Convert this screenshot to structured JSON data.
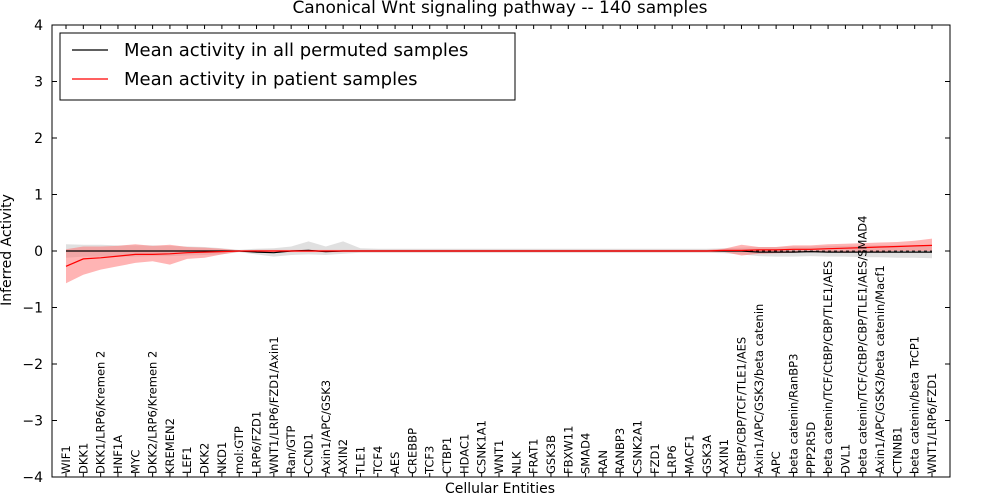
{
  "chart_data": {
    "type": "line",
    "title": "Canonical Wnt signaling pathway -- 140 samples",
    "xlabel": "Cellular Entities",
    "ylabel": "Inferred Activity",
    "ylim": [
      -4,
      4
    ],
    "yticks": [
      "−4",
      "−3",
      "−2",
      "−1",
      "0",
      "1",
      "2",
      "3",
      "4"
    ],
    "ytick_values": [
      -4,
      -3,
      -2,
      -1,
      0,
      1,
      2,
      3,
      4
    ],
    "legend_position": "upper-left",
    "categories": [
      "WIF1",
      "DKK1",
      "DKK1/LRP6/Kremen 2",
      "HNF1A",
      "MYC",
      "DKK2/LRP6/Kremen 2",
      "KREMEN2",
      "LEF1",
      "DKK2",
      "NKD1",
      "mol:GTP",
      "LRP6/FZD1",
      "WNT1/LRP6/FZD1/Axin1",
      "Ran/GTP",
      "CCND1",
      "Axin1/APC/GSK3",
      "AXIN2",
      "TLE1",
      "TCF4",
      "AES",
      "CREBBP",
      "TCF3",
      "CTBP1",
      "HDAC1",
      "CSNK1A1",
      "WNT1",
      "NLK",
      "FRAT1",
      "GSK3B",
      "FBXW11",
      "SMAD4",
      "RAN",
      "RANBP3",
      "CSNK2A1",
      "FZD1",
      "LRP6",
      "MACF1",
      "GSK3A",
      "AXIN1",
      "CtBP/CBP/TCF/TLE1/AES",
      "Axin1/APC/GSK3/beta catenin",
      "APC",
      "beta catenin/RanBP3",
      "PPP2R5D",
      "beta catenin/TCF/CtBP/CBP/TLE1/AES",
      "DVL1",
      "beta catenin/TCF/CtBP/CBP/TLE1/AES/SMAD4",
      "Axin1/APC/GSK3/beta catenin/Macf1",
      "CTNNB1",
      "beta catenin/beta TrCP1",
      "WNT1/LRP6/FZD1"
    ],
    "series": [
      {
        "name": "Mean activity in all permuted samples",
        "color": "#000000",
        "band_color": "#bbbbbb",
        "values": [
          0.0,
          0.0,
          0.0,
          0.0,
          0.0,
          0.0,
          0.0,
          0.0,
          0.0,
          0.0,
          0.0,
          -0.02,
          -0.03,
          0.0,
          0.01,
          -0.01,
          0.0,
          0.0,
          0.0,
          0.0,
          0.0,
          0.0,
          0.0,
          0.0,
          0.0,
          0.0,
          0.0,
          0.0,
          0.0,
          0.0,
          0.0,
          0.0,
          0.0,
          0.0,
          0.0,
          0.0,
          0.0,
          0.0,
          0.0,
          0.0,
          -0.02,
          -0.02,
          -0.02,
          -0.01,
          -0.02,
          -0.02,
          -0.02,
          -0.02,
          -0.02,
          -0.02,
          -0.02
        ],
        "lower": [
          -0.12,
          -0.1,
          -0.1,
          -0.1,
          -0.1,
          -0.09,
          -0.09,
          -0.08,
          -0.07,
          -0.06,
          -0.02,
          -0.06,
          -0.1,
          -0.07,
          -0.06,
          -0.07,
          -0.05,
          -0.03,
          -0.03,
          -0.03,
          -0.03,
          -0.03,
          -0.03,
          -0.03,
          -0.03,
          -0.03,
          -0.03,
          -0.03,
          -0.03,
          -0.03,
          -0.03,
          -0.03,
          -0.03,
          -0.03,
          -0.03,
          -0.03,
          -0.03,
          -0.03,
          -0.04,
          -0.06,
          -0.09,
          -0.1,
          -0.1,
          -0.09,
          -0.1,
          -0.1,
          -0.11,
          -0.11,
          -0.12,
          -0.12,
          -0.13
        ],
        "upper": [
          0.12,
          0.11,
          0.11,
          0.1,
          0.1,
          0.1,
          0.09,
          0.08,
          0.07,
          0.05,
          0.02,
          0.04,
          0.05,
          0.08,
          0.17,
          0.08,
          0.17,
          0.05,
          0.04,
          0.04,
          0.04,
          0.04,
          0.04,
          0.04,
          0.04,
          0.04,
          0.04,
          0.04,
          0.04,
          0.04,
          0.04,
          0.04,
          0.04,
          0.04,
          0.04,
          0.04,
          0.04,
          0.04,
          0.05,
          0.06,
          0.07,
          0.07,
          0.08,
          0.08,
          0.09,
          0.09,
          0.1,
          0.1,
          0.1,
          0.1,
          0.1
        ]
      },
      {
        "name": "Mean activity in patient samples",
        "color": "#ff0000",
        "band_color": "#ff7777",
        "values": [
          -0.27,
          -0.14,
          -0.12,
          -0.09,
          -0.06,
          -0.06,
          -0.05,
          -0.03,
          -0.02,
          -0.01,
          0.0,
          0.0,
          0.0,
          0.0,
          0.0,
          0.0,
          0.0,
          0.0,
          0.0,
          0.0,
          0.0,
          0.0,
          0.0,
          0.0,
          0.0,
          0.0,
          0.0,
          0.0,
          0.0,
          0.0,
          0.0,
          0.0,
          0.0,
          0.0,
          0.0,
          0.0,
          0.0,
          0.0,
          0.01,
          0.01,
          0.02,
          0.02,
          0.03,
          0.03,
          0.04,
          0.05,
          0.06,
          0.07,
          0.08,
          0.09,
          0.1
        ],
        "lower": [
          -0.57,
          -0.42,
          -0.33,
          -0.27,
          -0.21,
          -0.18,
          -0.24,
          -0.14,
          -0.12,
          -0.06,
          -0.01,
          -0.02,
          -0.02,
          -0.02,
          -0.02,
          -0.02,
          -0.02,
          -0.02,
          -0.02,
          -0.02,
          -0.02,
          -0.02,
          -0.02,
          -0.02,
          -0.02,
          -0.02,
          -0.02,
          -0.02,
          -0.02,
          -0.02,
          -0.02,
          -0.02,
          -0.02,
          -0.02,
          -0.02,
          -0.02,
          -0.02,
          -0.02,
          -0.02,
          -0.08,
          -0.05,
          -0.04,
          -0.03,
          -0.02,
          -0.02,
          -0.03,
          -0.02,
          -0.01,
          0.0,
          0.0,
          0.0
        ],
        "upper": [
          0.03,
          0.08,
          0.08,
          0.09,
          0.12,
          0.09,
          0.11,
          0.07,
          0.06,
          0.04,
          0.01,
          0.02,
          0.02,
          0.02,
          0.02,
          0.02,
          0.02,
          0.02,
          0.02,
          0.02,
          0.02,
          0.02,
          0.02,
          0.02,
          0.02,
          0.02,
          0.02,
          0.02,
          0.02,
          0.02,
          0.02,
          0.02,
          0.02,
          0.02,
          0.02,
          0.02,
          0.02,
          0.02,
          0.04,
          0.11,
          0.07,
          0.07,
          0.1,
          0.1,
          0.12,
          0.13,
          0.14,
          0.15,
          0.16,
          0.18,
          0.22
        ]
      }
    ]
  }
}
